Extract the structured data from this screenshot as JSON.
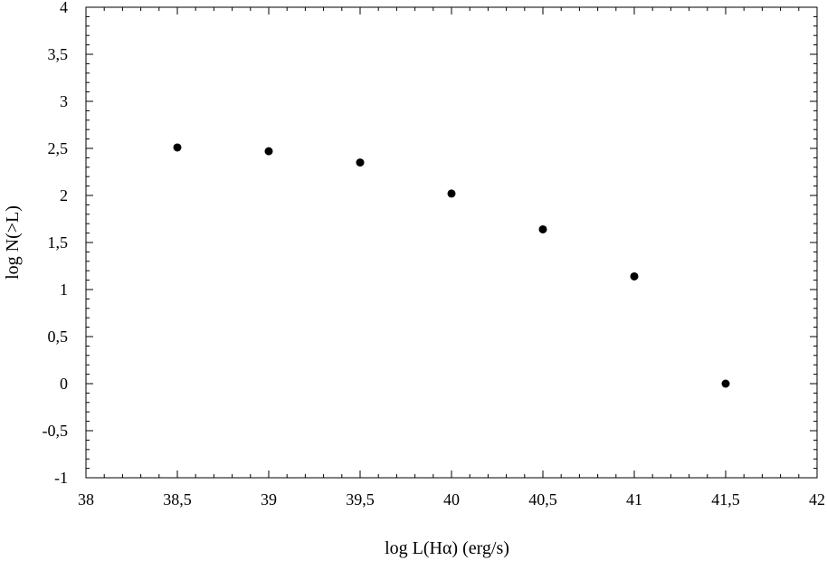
{
  "chart_data": {
    "type": "scatter",
    "title": "",
    "xlabel": "log L(Hα) (erg/s)",
    "ylabel": "log  N(>L)",
    "xlim": [
      38,
      42
    ],
    "ylim": [
      -1,
      4
    ],
    "x_ticks": [
      "38",
      "38,5",
      "39",
      "39,5",
      "40",
      "40,5",
      "41",
      "41,5",
      "42"
    ],
    "y_ticks": [
      "-1",
      "-0,5",
      "0",
      "0,5",
      "1",
      "1,5",
      "2",
      "2,5",
      "3",
      "3,5",
      "4"
    ],
    "grid": false,
    "legend": "none",
    "marker_color": "#000000",
    "series": [
      {
        "points": [
          {
            "x": 38.5,
            "y": 2.51
          },
          {
            "x": 39.0,
            "y": 2.47
          },
          {
            "x": 39.5,
            "y": 2.35
          },
          {
            "x": 40.0,
            "y": 2.02
          },
          {
            "x": 40.5,
            "y": 1.64
          },
          {
            "x": 41.0,
            "y": 1.14
          },
          {
            "x": 41.5,
            "y": 0.0
          }
        ]
      }
    ]
  }
}
